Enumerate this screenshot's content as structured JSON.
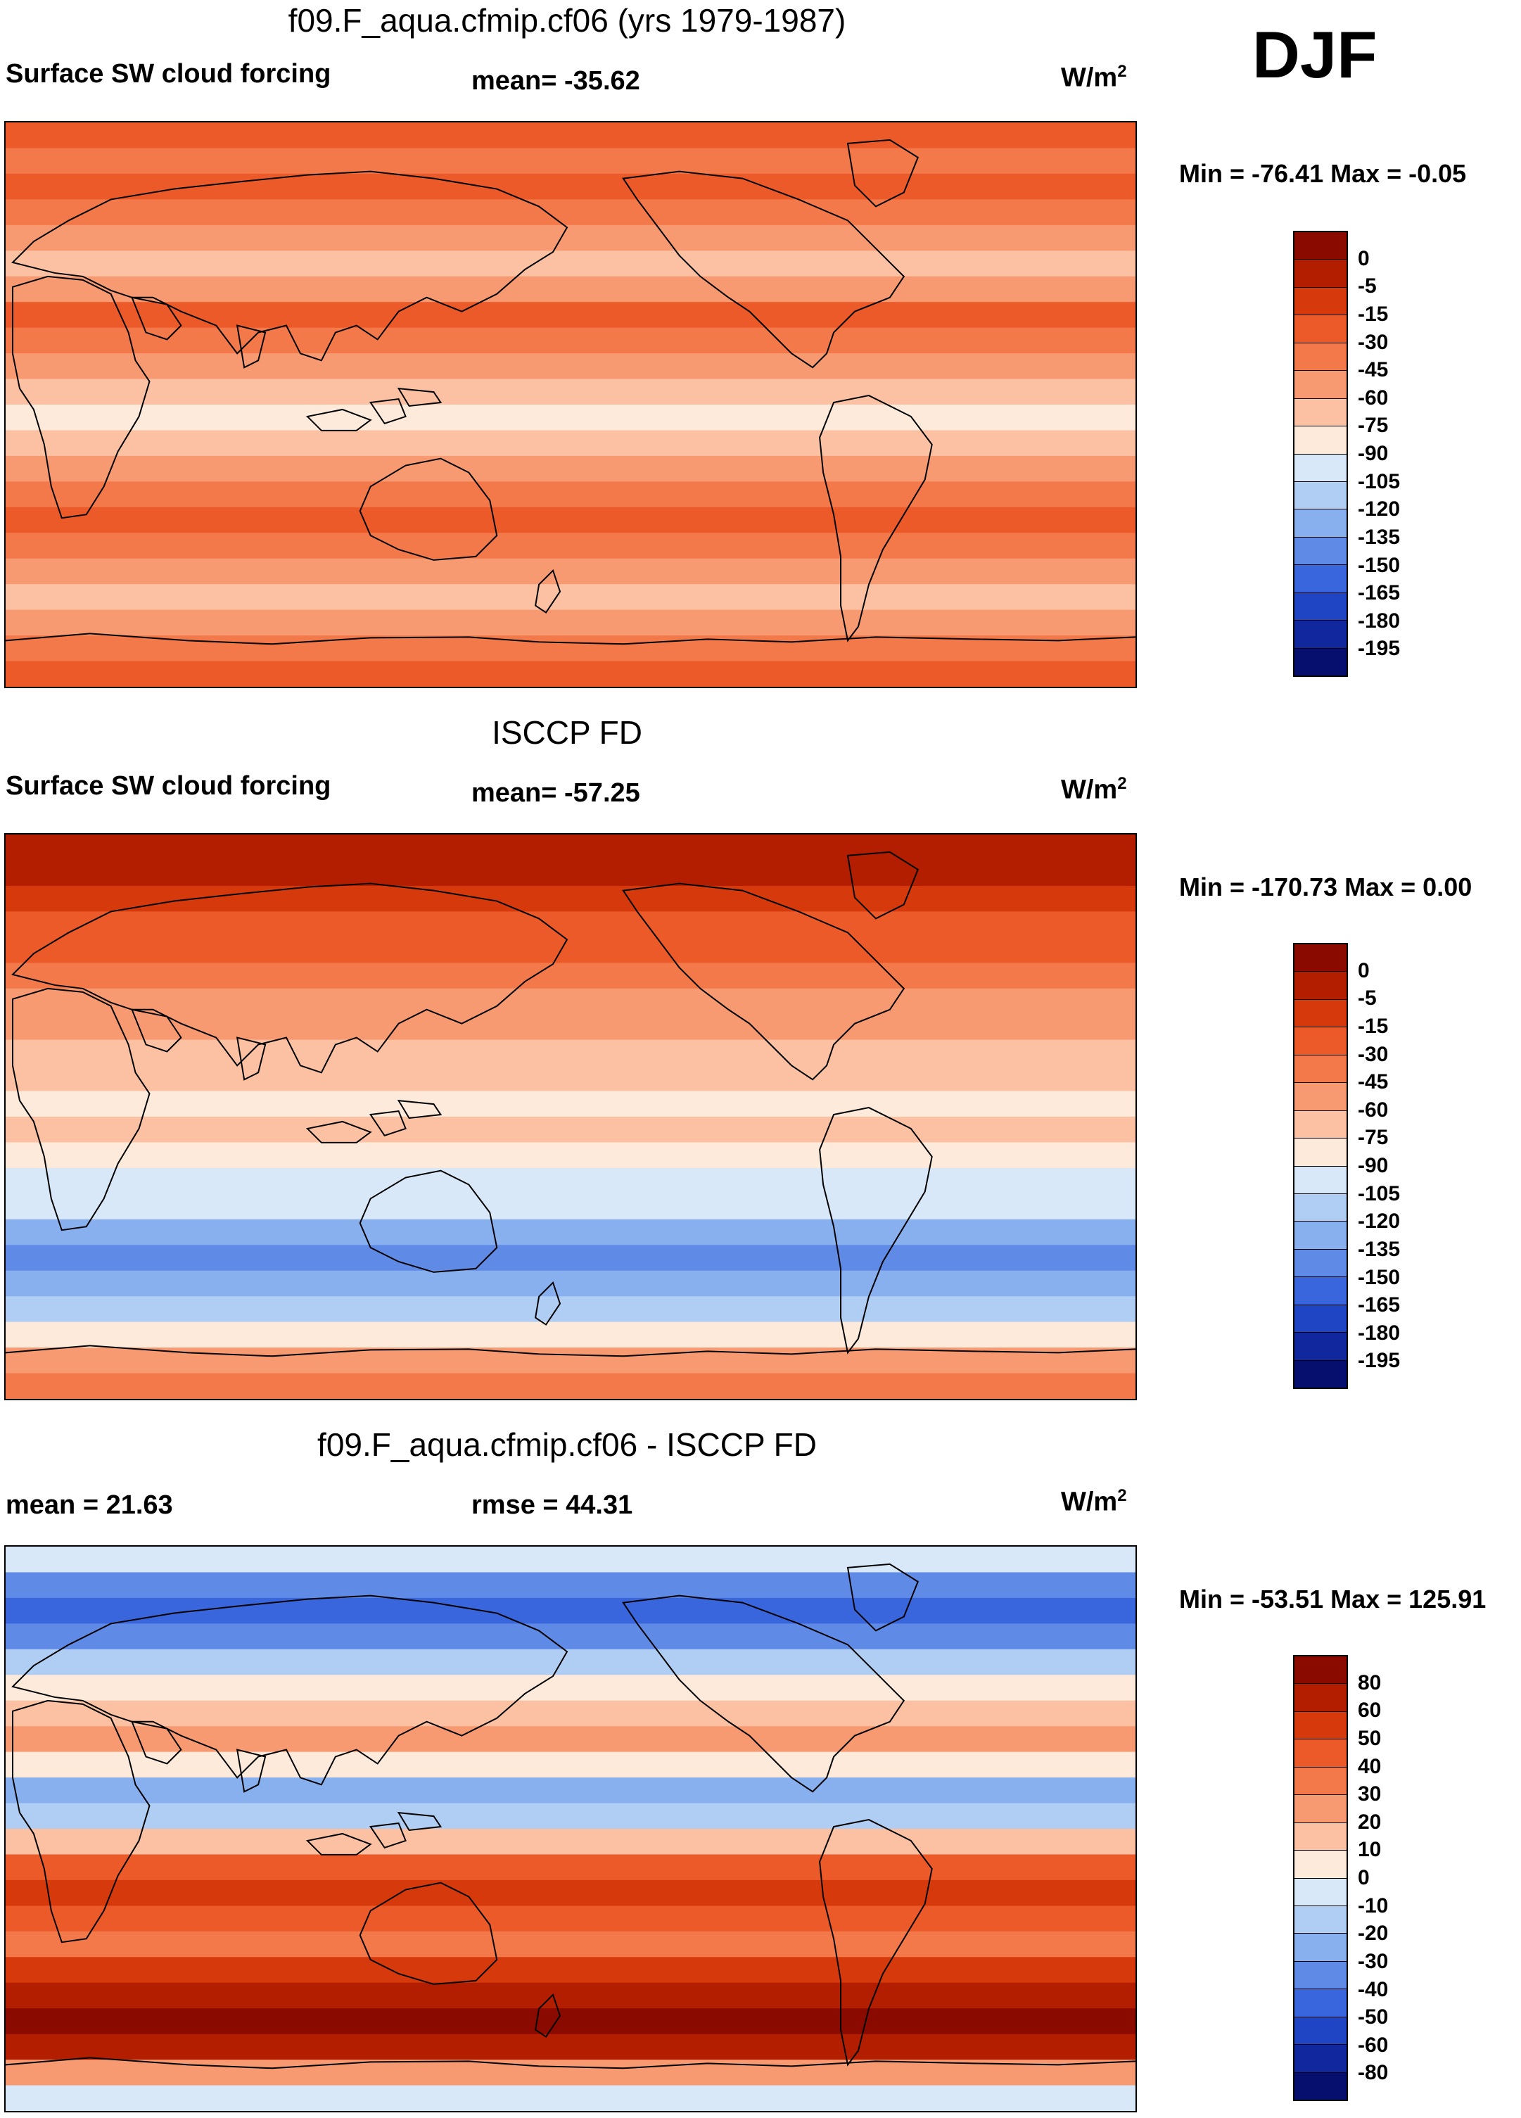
{
  "season": "DJF",
  "panels": [
    {
      "id": "model",
      "title": "f09.F_aqua.cfmip.cf06 (yrs 1979-1987)",
      "left_label": "Surface SW cloud forcing",
      "center_label": "mean= -35.62",
      "units_main": "W/m",
      "units_sup": "2",
      "minmax": "Min = -76.41 Max =  -0.05",
      "colorbar": {
        "labels": [
          "0",
          "-5",
          "-15",
          "-30",
          "-45",
          "-60",
          "-75",
          "-90",
          "-105",
          "-120",
          "-135",
          "-150",
          "-165",
          "-180",
          "-195"
        ],
        "colors": [
          "#8b0a00",
          "#b31e00",
          "#d63a0c",
          "#ec5a2a",
          "#f3784a",
          "#f79a72",
          "#fbc1a2",
          "#fdeadb",
          "#d8e8f8",
          "#b0cdf4",
          "#88afee",
          "#5f8be6",
          "#3a66dd",
          "#1f44c4",
          "#10279e",
          "#060f6d"
        ]
      },
      "zonal_pattern": {
        "fill_color_indices": [
          3,
          4,
          3,
          4,
          5,
          6,
          5,
          3,
          4,
          5,
          6,
          7,
          6,
          5,
          4,
          3,
          4,
          5,
          6,
          5,
          4,
          3
        ]
      }
    },
    {
      "id": "obs",
      "title": "ISCCP FD",
      "left_label": "Surface SW cloud forcing",
      "center_label": "mean= -57.25",
      "units_main": "W/m",
      "units_sup": "2",
      "minmax": "Min = -170.73 Max =   0.00",
      "colorbar": {
        "labels": [
          "0",
          "-5",
          "-15",
          "-30",
          "-45",
          "-60",
          "-75",
          "-90",
          "-105",
          "-120",
          "-135",
          "-150",
          "-165",
          "-180",
          "-195"
        ],
        "colors": [
          "#8b0a00",
          "#b31e00",
          "#d63a0c",
          "#ec5a2a",
          "#f3784a",
          "#f79a72",
          "#fbc1a2",
          "#fdeadb",
          "#d8e8f8",
          "#b0cdf4",
          "#88afee",
          "#5f8be6",
          "#3a66dd",
          "#1f44c4",
          "#10279e",
          "#060f6d"
        ]
      },
      "zonal_pattern": {
        "fill_color_indices": [
          1,
          1,
          2,
          3,
          3,
          4,
          5,
          5,
          6,
          6,
          7,
          6,
          7,
          8,
          8,
          10,
          11,
          10,
          9,
          7,
          5,
          4
        ]
      }
    },
    {
      "id": "diff",
      "title": "f09.F_aqua.cfmip.cf06 - ISCCP FD",
      "left_label": "mean =  21.63",
      "center_label": "rmse =  44.31",
      "units_main": "W/m",
      "units_sup": "2",
      "minmax": "Min = -53.51 Max = 125.91",
      "colorbar": {
        "labels": [
          "80",
          "60",
          "50",
          "40",
          "30",
          "20",
          "10",
          "0",
          "-10",
          "-20",
          "-30",
          "-40",
          "-50",
          "-60",
          "-80"
        ],
        "colors": [
          "#8b0a00",
          "#b31e00",
          "#d63a0c",
          "#ec5a2a",
          "#f3784a",
          "#f79a72",
          "#fbc1a2",
          "#fdeadb",
          "#d8e8f8",
          "#b0cdf4",
          "#88afee",
          "#5f8be6",
          "#3a66dd",
          "#1f44c4",
          "#10279e",
          "#060f6d"
        ]
      },
      "zonal_pattern": {
        "fill_color_indices": [
          8,
          11,
          12,
          11,
          9,
          7,
          6,
          5,
          7,
          10,
          9,
          6,
          3,
          2,
          3,
          4,
          2,
          1,
          0,
          1,
          5,
          8
        ]
      }
    }
  ]
}
